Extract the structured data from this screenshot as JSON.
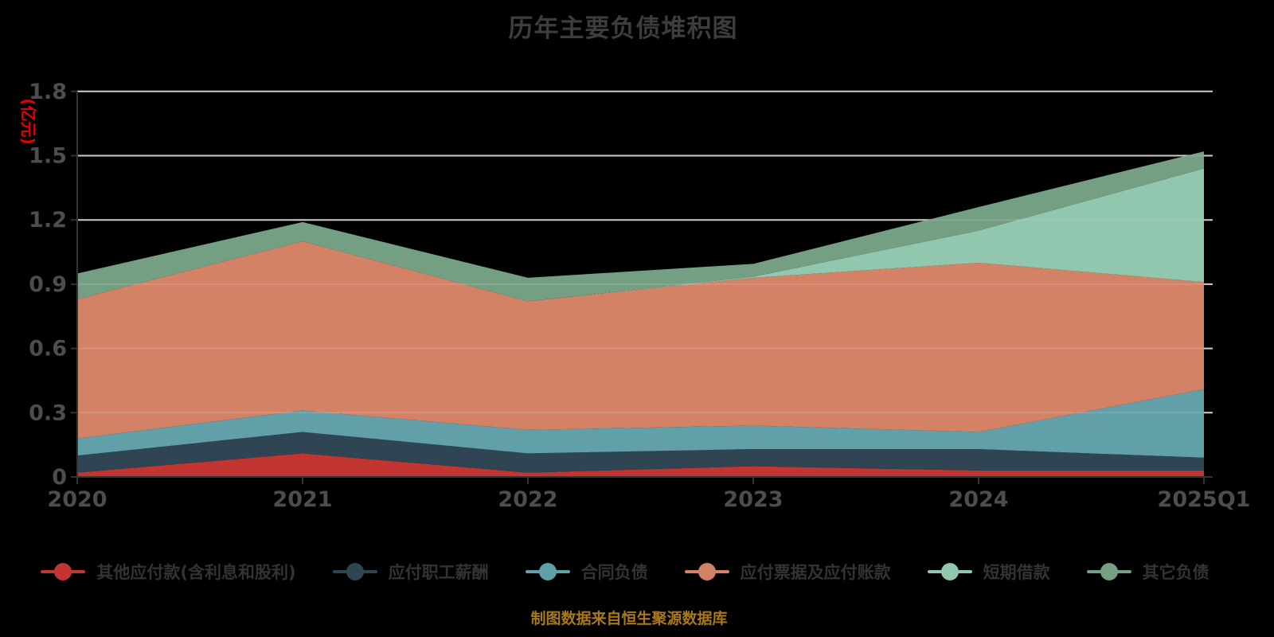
{
  "title": "历年主要负债堆积图",
  "y_axis_name": "(亿元)",
  "footer": "制图数据来自恒生聚源数据库",
  "palette": {
    "background": "#000000",
    "title_color": "#3d3d3d",
    "axis_line": "#333333",
    "grid_line": "#cccccc",
    "tick_label": "#4d4d4d",
    "y_name_color": "#e60000",
    "legend_text": "#333333",
    "footer_color": "#a8791a"
  },
  "chart_data": {
    "type": "area",
    "stacked": true,
    "title": "历年主要负债堆积图",
    "xlabel": "",
    "ylabel": "(亿元)",
    "ylim": [
      0,
      1.8
    ],
    "ytick_step": 0.3,
    "grid": true,
    "legend_position": "bottom",
    "categories": [
      "2020",
      "2021",
      "2022",
      "2023",
      "2024",
      "2025Q1"
    ],
    "series": [
      {
        "name": "其他应付款(含利息和股利)",
        "color": "#c23531",
        "values": [
          0.02,
          0.11,
          0.02,
          0.05,
          0.03,
          0.03
        ]
      },
      {
        "name": "应付职工薪酬",
        "color": "#2f4554",
        "values": [
          0.08,
          0.1,
          0.09,
          0.08,
          0.1,
          0.06
        ]
      },
      {
        "name": "合同负债",
        "color": "#61a0a8",
        "values": [
          0.08,
          0.1,
          0.11,
          0.11,
          0.08,
          0.32
        ]
      },
      {
        "name": "应付票据及应付账款",
        "color": "#d48265",
        "values": [
          0.65,
          0.79,
          0.6,
          0.69,
          0.79,
          0.5
        ]
      },
      {
        "name": "短期借款",
        "color": "#91c7ae",
        "values": [
          0.0,
          0.0,
          0.0,
          0.005,
          0.15,
          0.53
        ]
      },
      {
        "name": "其它负债",
        "color": "#749f83",
        "values": [
          0.12,
          0.09,
          0.11,
          0.06,
          0.11,
          0.08
        ]
      }
    ],
    "stack_totals": [
      0.95,
      1.19,
      0.93,
      1.0,
      1.26,
      1.52
    ]
  }
}
